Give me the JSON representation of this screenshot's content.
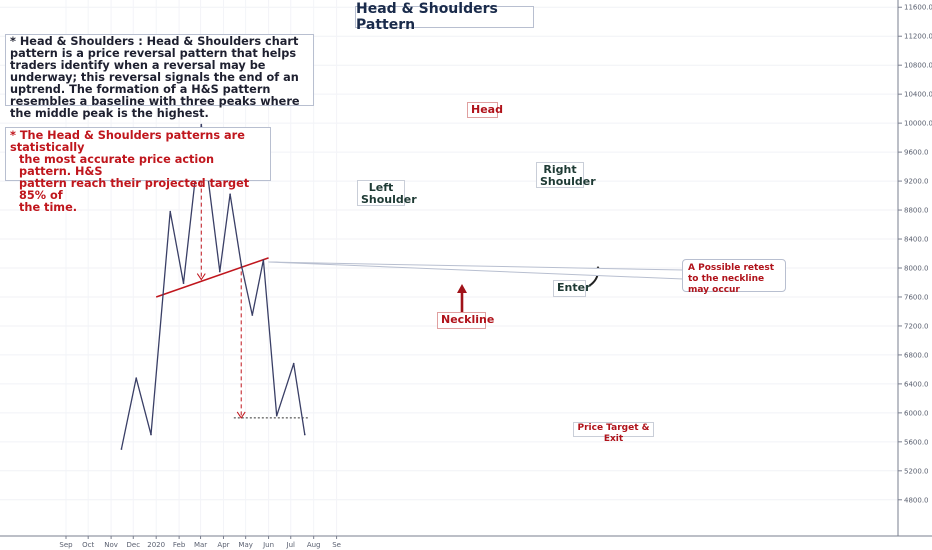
{
  "chart_data": {
    "type": "line",
    "title": "Head & Shoulders Pattern",
    "x_ticks": [
      "Sep",
      "Oct",
      "Nov",
      "Dec",
      "2020",
      "Feb",
      "Mar",
      "Apr",
      "May",
      "Jun",
      "Jul",
      "Aug",
      "Se"
    ],
    "y_ticks": [
      4800.0,
      5200.0,
      5600.0,
      6000.0,
      6400.0,
      6800.0,
      7200.0,
      7600.0,
      8000.0,
      8400.0,
      8800.0,
      9200.0,
      9600.0,
      10000.0,
      10400.0,
      10800.0,
      11200.0,
      11600.0
    ],
    "ylim": [
      4300,
      11700
    ],
    "series": [
      {
        "color": "#3a3f66",
        "points": [
          {
            "x": "2019-11-15",
            "y": 5500
          },
          {
            "x": "2019-12-05",
            "y": 6480
          },
          {
            "x": "2019-12-25",
            "y": 5700
          },
          {
            "x": "2020-01-20",
            "y": 8780
          },
          {
            "x": "2020-02-07",
            "y": 7790
          },
          {
            "x": "2020-03-02",
            "y": 9980
          },
          {
            "x": "2020-03-27",
            "y": 7950
          },
          {
            "x": "2020-04-10",
            "y": 9020
          },
          {
            "x": "2020-04-25",
            "y": 8050
          },
          {
            "x": "2020-05-10",
            "y": 7350
          },
          {
            "x": "2020-05-25",
            "y": 8110
          },
          {
            "x": "2020-06-12",
            "y": 5960
          },
          {
            "x": "2020-07-05",
            "y": 6680
          },
          {
            "x": "2020-07-20",
            "y": 5700
          }
        ]
      }
    ],
    "neckline": {
      "color": "#c0161d",
      "from": {
        "x": "2020-01-01",
        "y": 7600
      },
      "to": {
        "x": "2020-06-01",
        "y": 8140
      }
    },
    "target_line": {
      "color": "#333333",
      "from": {
        "x": "2020-04-15",
        "y": 5930
      },
      "to": {
        "x": "2020-07-25",
        "y": 5930
      }
    },
    "grid": true,
    "axis_color": "#7a7f8f"
  },
  "labels": {
    "title": "Head & Shoulders Pattern",
    "note": "* Head & Shoulders : Head & Shoulders chart pattern is a price reversal pattern that helps traders identify when a reversal may be underway; this reversal signals the end of an uptrend. The formation of a H&S pattern resembles a baseline with three peaks where the middle peak is the highest.",
    "note2_line1": "* The Head & Shoulders patterns are statistically",
    "note2_line2": "the most accurate price action pattern. H&S",
    "note2_line3": "pattern reach their projected target 85% of",
    "note2_line4": "the time.",
    "head": "Head",
    "left_shoulder_1": "Left",
    "left_shoulder_2": "Shoulder",
    "right_shoulder_1": "Right",
    "right_shoulder_2": "Shoulder",
    "neckline": "Neckline",
    "enter": "Enter",
    "retest": "A Possible retest to the neckline may occur",
    "target": "Price Target & Exit"
  },
  "colors": {
    "accent_red": "#c0161d",
    "price_line": "#3a3f66",
    "label_green": "#1e3a34"
  }
}
